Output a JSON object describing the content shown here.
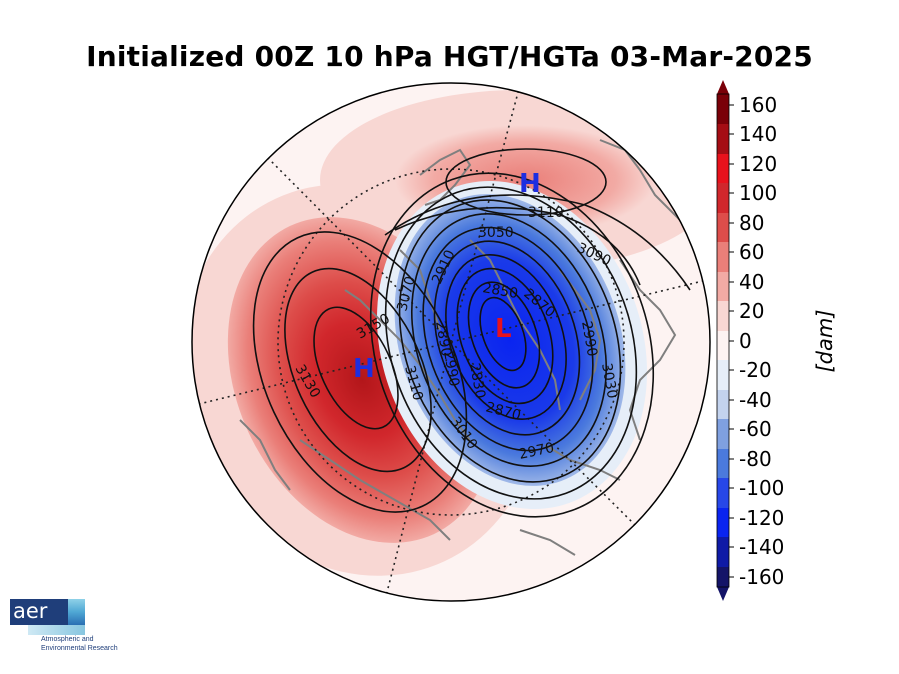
{
  "title": "Initialized 00Z 10 hPa HGT/HGTa 03-Mar-2025",
  "colorbar": {
    "tick_labels": [
      "160",
      "140",
      "120",
      "100",
      "80",
      "60",
      "40",
      "20",
      "0",
      "-20",
      "-40",
      "-60",
      "-80",
      "-100",
      "-120",
      "-140",
      "-160"
    ],
    "unit_label": "[dam]",
    "colors": {
      "max": "#7a0008",
      "p140": "#a50d14",
      "p120": "#e8121c",
      "p100": "#d1272c",
      "p80": "#dd4d4a",
      "p60": "#ea7f79",
      "p40": "#f2aaa4",
      "p20": "#f8d7d3",
      "zero": "#fdf3f2",
      "n20": "#e6eef8",
      "n40": "#c3d3ee",
      "n60": "#7fa0e0",
      "n80": "#4b7add",
      "n100": "#2747e8",
      "n120": "#0a24f0",
      "n140": "#0f1aa6",
      "min": "#141468"
    }
  },
  "contour_labels": [
    "3110",
    "3090",
    "3050",
    "3070",
    "3150",
    "3130",
    "3110",
    "2910",
    "2850",
    "2830",
    "2890",
    "2990",
    "3030",
    "2870",
    "2970",
    "3010",
    "2990",
    "2870"
  ],
  "center_labels": [
    {
      "text": "H",
      "color": "#1e2ee0"
    },
    {
      "text": "L",
      "color": "#e8121c"
    },
    {
      "text": "H",
      "color": "#1e2ee0"
    }
  ],
  "logo": {
    "mark": "aer",
    "line1": "Atmospheric and",
    "line2": "Environmental Research"
  }
}
